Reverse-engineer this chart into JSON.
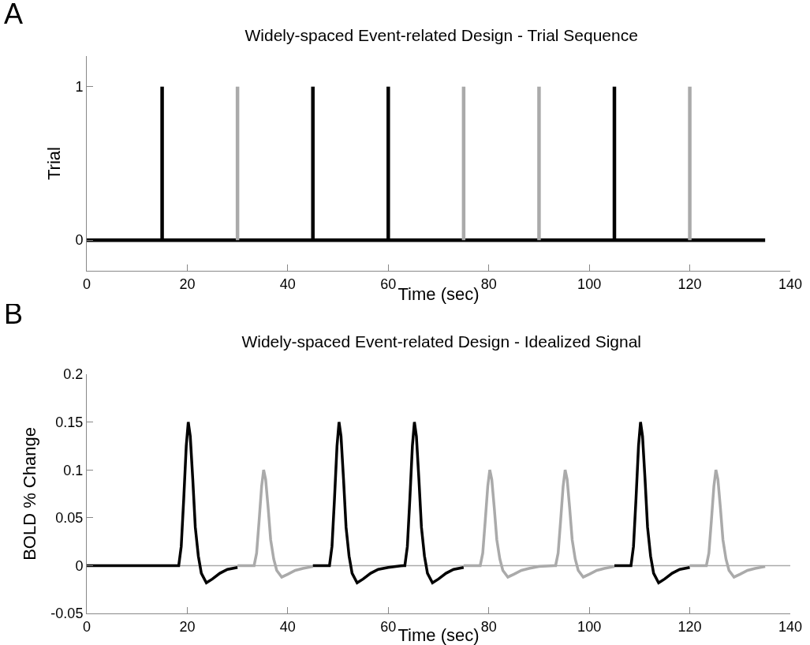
{
  "chart_data": [
    {
      "type": "line",
      "title": "Widely-spaced Event-related Design - Trial Sequence",
      "xlabel": "Time (sec)",
      "ylabel": "Trial",
      "annotations": [
        "A"
      ],
      "xlim": [
        0,
        140
      ],
      "xticks": [
        0,
        20,
        40,
        60,
        80,
        100,
        120,
        140
      ],
      "ylim": [
        -0.2,
        1.2
      ],
      "yticks": [
        0,
        1
      ],
      "series": [
        {
          "color": "#000000",
          "x": [
            0,
            135
          ],
          "values": [
            0,
            0
          ]
        },
        {
          "color": "#000000",
          "x": [
            15,
            15
          ],
          "values": [
            0,
            1
          ]
        },
        {
          "color": "#aaaaaa",
          "x": [
            30,
            30
          ],
          "values": [
            0,
            1
          ]
        },
        {
          "color": "#000000",
          "x": [
            45,
            45
          ],
          "values": [
            0,
            1
          ]
        },
        {
          "color": "#000000",
          "x": [
            60,
            60
          ],
          "values": [
            0,
            1
          ]
        },
        {
          "color": "#aaaaaa",
          "x": [
            75,
            75
          ],
          "values": [
            0,
            1
          ]
        },
        {
          "color": "#aaaaaa",
          "x": [
            90,
            90
          ],
          "values": [
            0,
            1
          ]
        },
        {
          "color": "#000000",
          "x": [
            105,
            105
          ],
          "values": [
            0,
            1
          ]
        },
        {
          "color": "#aaaaaa",
          "x": [
            120,
            120
          ],
          "values": [
            0,
            1
          ]
        }
      ]
    },
    {
      "type": "line",
      "title": "Widely-spaced Event-related Design - Idealized Signal",
      "xlabel": "Time (sec)",
      "ylabel": "BOLD % Change",
      "annotations": [
        "B"
      ],
      "xlim": [
        0,
        140
      ],
      "xticks": [
        0,
        20,
        40,
        60,
        80,
        100,
        120,
        140
      ],
      "ylim": [
        -0.05,
        0.2
      ],
      "yticks": [
        -0.05,
        0,
        0.05,
        0.1,
        0.15,
        0.2
      ],
      "ref_lines": [
        {
          "axis": "y",
          "value": 0,
          "color": "#aaaaaa"
        }
      ],
      "series": [
        {
          "color": "#000000",
          "x": [
            0,
            15,
            18,
            18.3,
            18.8,
            19.3,
            19.8,
            20.2,
            20.6,
            21.1,
            21.6,
            22.2,
            22.8,
            23.8,
            25,
            26.5,
            28,
            30
          ],
          "values": [
            0,
            0,
            0,
            0,
            0.02,
            0.07,
            0.125,
            0.15,
            0.135,
            0.09,
            0.04,
            0.01,
            -0.008,
            -0.018,
            -0.014,
            -0.008,
            -0.004,
            -0.002
          ]
        },
        {
          "color": "#aaaaaa",
          "x": [
            30,
            33,
            33.3,
            33.8,
            34.3,
            34.8,
            35.2,
            35.6,
            36.1,
            36.6,
            37.2,
            37.8,
            38.8,
            40,
            41.5,
            43,
            45
          ],
          "values": [
            0,
            0,
            0,
            0.013,
            0.047,
            0.083,
            0.1,
            0.09,
            0.06,
            0.027,
            0.007,
            -0.005,
            -0.012,
            -0.009,
            -0.005,
            -0.003,
            -0.001
          ]
        },
        {
          "color": "#000000",
          "x": [
            45,
            48,
            48.3,
            48.8,
            49.3,
            49.8,
            50.2,
            50.6,
            51.1,
            51.6,
            52.2,
            52.8,
            53.8,
            55,
            56.5,
            58,
            60,
            63,
            63.3,
            63.8,
            64.3,
            64.8,
            65.2,
            65.6,
            66.1,
            66.6,
            67.2,
            67.8,
            68.8,
            70,
            71.5,
            73,
            75
          ],
          "values": [
            0,
            0,
            0,
            0.02,
            0.07,
            0.125,
            0.15,
            0.135,
            0.09,
            0.04,
            0.01,
            -0.008,
            -0.018,
            -0.014,
            -0.008,
            -0.004,
            -0.002,
            0,
            0,
            0.02,
            0.07,
            0.125,
            0.15,
            0.135,
            0.09,
            0.04,
            0.01,
            -0.008,
            -0.018,
            -0.014,
            -0.008,
            -0.004,
            -0.002
          ]
        },
        {
          "color": "#aaaaaa",
          "x": [
            75,
            78,
            78.3,
            78.8,
            79.3,
            79.8,
            80.2,
            80.6,
            81.1,
            81.6,
            82.2,
            82.8,
            83.8,
            85,
            86.5,
            88,
            90,
            93,
            93.3,
            93.8,
            94.3,
            94.8,
            95.2,
            95.6,
            96.1,
            96.6,
            97.2,
            97.8,
            98.8,
            100,
            101.5,
            103,
            105
          ],
          "values": [
            0,
            0,
            0,
            0.013,
            0.047,
            0.083,
            0.1,
            0.09,
            0.06,
            0.027,
            0.007,
            -0.005,
            -0.012,
            -0.009,
            -0.005,
            -0.003,
            -0.001,
            0,
            0,
            0.013,
            0.047,
            0.083,
            0.1,
            0.09,
            0.06,
            0.027,
            0.007,
            -0.005,
            -0.012,
            -0.009,
            -0.005,
            -0.003,
            -0.001
          ]
        },
        {
          "color": "#000000",
          "x": [
            105,
            108,
            108.3,
            108.8,
            109.3,
            109.8,
            110.2,
            110.6,
            111.1,
            111.6,
            112.2,
            112.8,
            113.8,
            115,
            116.5,
            118,
            120
          ],
          "values": [
            0,
            0,
            0,
            0.02,
            0.07,
            0.125,
            0.15,
            0.135,
            0.09,
            0.04,
            0.01,
            -0.008,
            -0.018,
            -0.014,
            -0.008,
            -0.004,
            -0.002
          ]
        },
        {
          "color": "#aaaaaa",
          "x": [
            120,
            123,
            123.3,
            123.8,
            124.3,
            124.8,
            125.2,
            125.6,
            126.1,
            126.6,
            127.2,
            127.8,
            128.8,
            130,
            131.5,
            133,
            135
          ],
          "values": [
            0,
            0,
            0,
            0.013,
            0.047,
            0.083,
            0.1,
            0.09,
            0.06,
            0.027,
            0.007,
            -0.005,
            -0.012,
            -0.009,
            -0.005,
            -0.003,
            -0.001
          ]
        }
      ]
    }
  ]
}
